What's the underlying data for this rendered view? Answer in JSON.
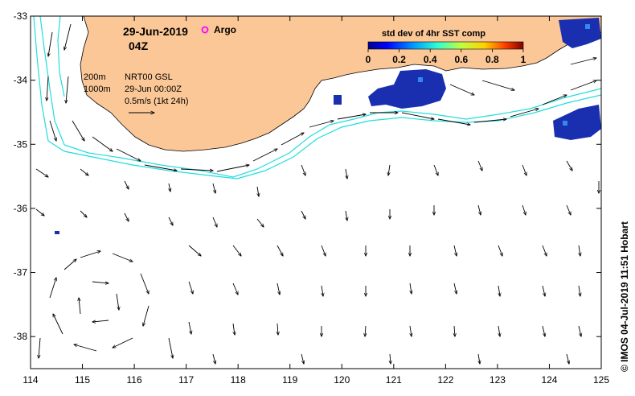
{
  "header": {
    "date": "29-Jun-2019",
    "time": "04Z",
    "argo_label": "Argo"
  },
  "info": {
    "isobath_200": "200m",
    "isobath_1000": "1000m",
    "product": "NRT00 GSL",
    "product_time": "29-Jun 00:00Z",
    "scale": "0.5m/s (1kt 24h)"
  },
  "colorbar": {
    "title": "std dev of 4hr SST comp",
    "ticks": [
      "0",
      "0.2",
      "0.4",
      "0.6",
      "0.8",
      "1"
    ]
  },
  "credit": "© IMOS 04-Jul-2019 11:51 Hobart",
  "colors": {
    "land": "#fbc796",
    "isobath": "#22dddd",
    "sst_patch": "#1030b0",
    "argo": "#ff00ff"
  },
  "chart_data": {
    "type": "map",
    "x_ticks": [
      "114",
      "115",
      "116",
      "117",
      "118",
      "119",
      "120",
      "121",
      "122",
      "123",
      "124",
      "125"
    ],
    "y_ticks": [
      "-33",
      "-34",
      "-35",
      "-36",
      "-37",
      "-38"
    ],
    "xlim": [
      114,
      125
    ],
    "ylim": [
      -38.5,
      -33
    ]
  }
}
